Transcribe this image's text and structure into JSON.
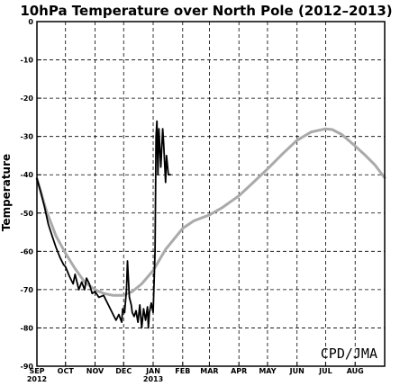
{
  "chart_data": {
    "type": "line",
    "title": "10hPa Temperature over North Pole (2012–2013)",
    "ylabel": "Temperature",
    "xlabel": "",
    "ylim": [
      -90,
      0
    ],
    "y_ticks": [
      0,
      -10,
      -20,
      -30,
      -40,
      -50,
      -60,
      -70,
      -80,
      -90
    ],
    "x_ticks": [
      {
        "day": 0,
        "label": "SEP",
        "sublabel": "2012"
      },
      {
        "day": 30,
        "label": "OCT",
        "sublabel": ""
      },
      {
        "day": 61,
        "label": "NOV",
        "sublabel": ""
      },
      {
        "day": 91,
        "label": "DEC",
        "sublabel": ""
      },
      {
        "day": 122,
        "label": "JAN",
        "sublabel": "2013"
      },
      {
        "day": 153,
        "label": "FEB",
        "sublabel": ""
      },
      {
        "day": 181,
        "label": "MAR",
        "sublabel": ""
      },
      {
        "day": 212,
        "label": "APR",
        "sublabel": ""
      },
      {
        "day": 242,
        "label": "MAY",
        "sublabel": ""
      },
      {
        "day": 273,
        "label": "JUN",
        "sublabel": ""
      },
      {
        "day": 303,
        "label": "JUL",
        "sublabel": ""
      },
      {
        "day": 334,
        "label": "AUG",
        "sublabel": ""
      }
    ],
    "x_range": [
      0,
      365
    ],
    "grid": true,
    "credit": "CPD/JMA",
    "series": [
      {
        "color": "#aaaaaa",
        "x": [
          0,
          10,
          20,
          30,
          40,
          50,
          61,
          70,
          80,
          91,
          100,
          110,
          122,
          135,
          153,
          165,
          181,
          195,
          212,
          225,
          242,
          258,
          273,
          288,
          303,
          310,
          320,
          334,
          345,
          355,
          365
        ],
        "y": [
          -41,
          -49.5,
          -56,
          -60.5,
          -64.5,
          -68,
          -70,
          -71,
          -71.5,
          -71.5,
          -70.5,
          -68.5,
          -65,
          -59.5,
          -54,
          -52,
          -50.5,
          -48.5,
          -45.5,
          -42.5,
          -38.5,
          -34.5,
          -31,
          -28.8,
          -28,
          -28.2,
          -29.5,
          -32.5,
          -35,
          -37.5,
          -40.8
        ]
      },
      {
        "color": "#000000",
        "x": [
          0,
          4,
          8,
          12,
          16,
          20,
          24,
          28,
          30,
          34,
          38,
          40,
          44,
          47,
          50,
          52,
          55,
          58,
          61,
          65,
          70,
          75,
          80,
          83,
          86,
          89,
          90,
          92,
          94,
          95,
          97,
          99,
          100,
          102,
          104,
          106,
          108,
          110,
          112,
          114,
          116,
          117,
          118,
          120,
          122,
          124,
          125,
          126,
          127,
          128,
          130,
          132,
          133,
          135,
          136,
          138,
          140
        ],
        "y": [
          -41,
          -44.5,
          -48.5,
          -53,
          -56,
          -59,
          -61.5,
          -63.5,
          -64,
          -66.5,
          -68.5,
          -66,
          -70,
          -68,
          -70,
          -67,
          -68.5,
          -71,
          -70.5,
          -72,
          -71.5,
          -74,
          -76.5,
          -78,
          -76.5,
          -78.5,
          -75,
          -76,
          -70,
          -62.5,
          -72,
          -74,
          -76,
          -77,
          -75.5,
          -78.5,
          -74,
          -80,
          -75,
          -78,
          -74.5,
          -80,
          -76,
          -73.5,
          -76,
          -60,
          -30,
          -26,
          -40,
          -28,
          -38,
          -28,
          -32,
          -42,
          -35,
          -40,
          -40
        ]
      }
    ]
  }
}
